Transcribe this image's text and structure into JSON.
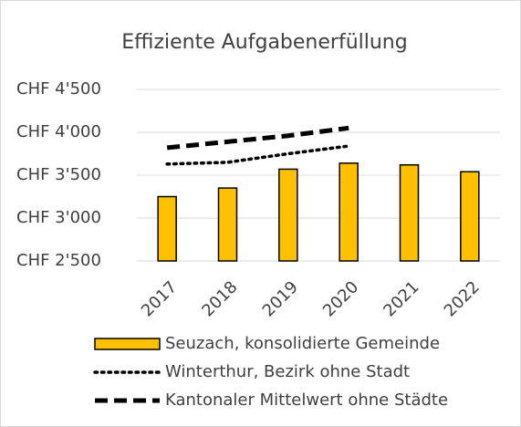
{
  "chart_data": {
    "type": "bar",
    "title": "Effiziente Aufgabenerfüllung",
    "categories": [
      "2017",
      "2018",
      "2019",
      "2020",
      "2021",
      "2022"
    ],
    "series": [
      {
        "name": "Seuzach, konsolidierte Gemeinde",
        "type": "bar",
        "color": "#ffc000",
        "values": [
          3250,
          3350,
          3570,
          3640,
          3620,
          3540
        ]
      },
      {
        "name": "Winterthur, Bezirk ohne Stadt",
        "type": "line",
        "style": "dotted",
        "color": "#000000",
        "values": [
          3630,
          3650,
          3750,
          3840,
          null,
          null
        ]
      },
      {
        "name": "Kantonaler Mittelwert ohne Städte",
        "type": "line",
        "style": "dashed",
        "color": "#000000",
        "values": [
          3820,
          3890,
          3960,
          4050,
          null,
          null
        ]
      }
    ],
    "ylim": [
      2500,
      4500
    ],
    "yticks": [
      {
        "value": 2500,
        "label": "CHF 2'500"
      },
      {
        "value": 3000,
        "label": "CHF 3'000"
      },
      {
        "value": 3500,
        "label": "CHF 3'500"
      },
      {
        "value": 4000,
        "label": "CHF 4'000"
      },
      {
        "value": 4500,
        "label": "CHF 4'500"
      }
    ],
    "grid": true,
    "legend": "bottom"
  }
}
